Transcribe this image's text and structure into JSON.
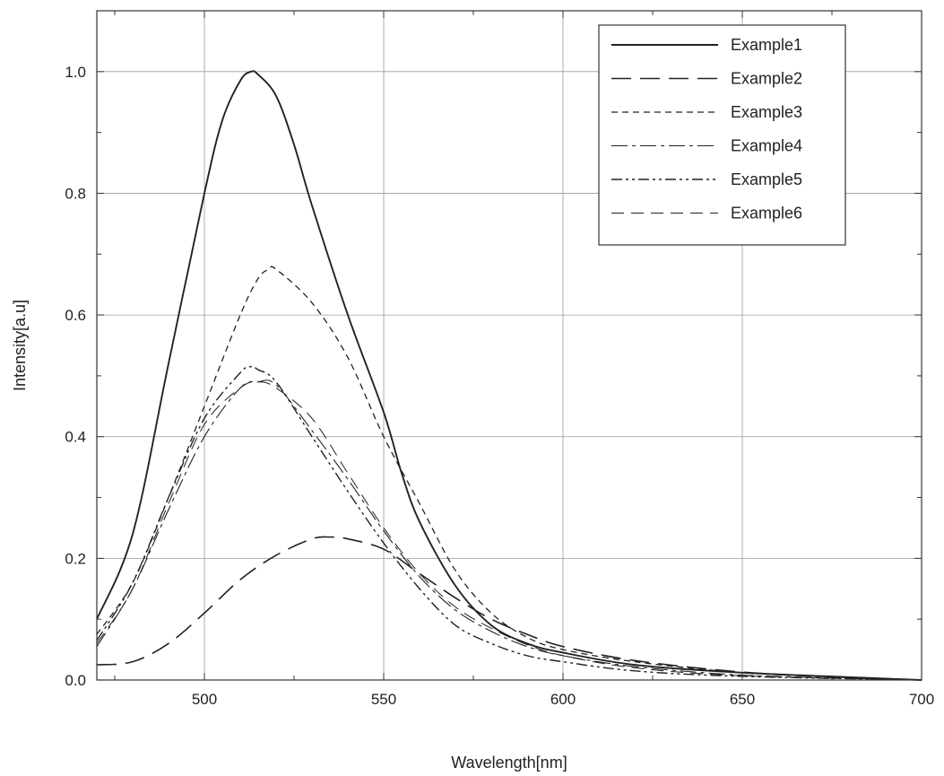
{
  "chart_data": {
    "type": "line",
    "title": "",
    "xlabel": "Wavelength[nm]",
    "ylabel": "Intensity[a.u]",
    "xlim": [
      470,
      700
    ],
    "ylim": [
      0,
      1.1
    ],
    "xticks": [
      500,
      550,
      600,
      650,
      700
    ],
    "yticks": [
      0.0,
      0.2,
      0.4,
      0.6,
      0.8,
      1.0
    ],
    "xtick_labels": [
      "500",
      "550",
      "600",
      "650",
      "700"
    ],
    "ytick_labels": [
      "0.0",
      "0.2",
      "0.4",
      "0.6",
      "0.8",
      "1.0"
    ],
    "grid": true,
    "legend_position": "top-right",
    "line_color": "#222222",
    "series": [
      {
        "name": "Example1",
        "style": "solid",
        "points": [
          [
            470,
            0.1
          ],
          [
            480,
            0.24
          ],
          [
            490,
            0.52
          ],
          [
            500,
            0.8
          ],
          [
            505,
            0.92
          ],
          [
            510,
            0.985
          ],
          [
            513,
            1.0
          ],
          [
            515,
            0.995
          ],
          [
            520,
            0.96
          ],
          [
            525,
            0.88
          ],
          [
            530,
            0.78
          ],
          [
            540,
            0.6
          ],
          [
            550,
            0.44
          ],
          [
            555,
            0.34
          ],
          [
            560,
            0.26
          ],
          [
            570,
            0.155
          ],
          [
            580,
            0.09
          ],
          [
            590,
            0.06
          ],
          [
            600,
            0.045
          ],
          [
            620,
            0.025
          ],
          [
            650,
            0.012
          ],
          [
            700,
            0.0
          ]
        ]
      },
      {
        "name": "Example2",
        "style": "longdash",
        "points": [
          [
            470,
            0.025
          ],
          [
            480,
            0.03
          ],
          [
            490,
            0.06
          ],
          [
            500,
            0.11
          ],
          [
            510,
            0.165
          ],
          [
            520,
            0.205
          ],
          [
            530,
            0.232
          ],
          [
            535,
            0.235
          ],
          [
            540,
            0.232
          ],
          [
            550,
            0.215
          ],
          [
            560,
            0.175
          ],
          [
            570,
            0.135
          ],
          [
            580,
            0.1
          ],
          [
            590,
            0.075
          ],
          [
            600,
            0.055
          ],
          [
            620,
            0.032
          ],
          [
            650,
            0.013
          ],
          [
            680,
            0.004
          ],
          [
            700,
            0.0
          ]
        ]
      },
      {
        "name": "Example3",
        "style": "shortdash",
        "points": [
          [
            470,
            0.075
          ],
          [
            480,
            0.16
          ],
          [
            490,
            0.3
          ],
          [
            500,
            0.45
          ],
          [
            510,
            0.6
          ],
          [
            515,
            0.66
          ],
          [
            518,
            0.675
          ],
          [
            520,
            0.675
          ],
          [
            530,
            0.62
          ],
          [
            540,
            0.53
          ],
          [
            550,
            0.4
          ],
          [
            560,
            0.29
          ],
          [
            570,
            0.18
          ],
          [
            580,
            0.11
          ],
          [
            590,
            0.07
          ],
          [
            600,
            0.05
          ],
          [
            620,
            0.03
          ],
          [
            650,
            0.012
          ],
          [
            680,
            0.004
          ],
          [
            700,
            0.0
          ]
        ]
      },
      {
        "name": "Example4",
        "style": "dashdot",
        "points": [
          [
            470,
            0.055
          ],
          [
            480,
            0.15
          ],
          [
            490,
            0.28
          ],
          [
            500,
            0.4
          ],
          [
            510,
            0.48
          ],
          [
            515,
            0.49
          ],
          [
            520,
            0.485
          ],
          [
            530,
            0.41
          ],
          [
            540,
            0.33
          ],
          [
            550,
            0.245
          ],
          [
            560,
            0.17
          ],
          [
            570,
            0.115
          ],
          [
            580,
            0.08
          ],
          [
            590,
            0.055
          ],
          [
            600,
            0.04
          ],
          [
            620,
            0.022
          ],
          [
            650,
            0.008
          ],
          [
            680,
            0.003
          ],
          [
            700,
            0.0
          ]
        ]
      },
      {
        "name": "Example5",
        "style": "dashdotdot",
        "points": [
          [
            470,
            0.065
          ],
          [
            480,
            0.16
          ],
          [
            490,
            0.3
          ],
          [
            500,
            0.43
          ],
          [
            510,
            0.505
          ],
          [
            513,
            0.515
          ],
          [
            515,
            0.51
          ],
          [
            520,
            0.49
          ],
          [
            530,
            0.4
          ],
          [
            540,
            0.31
          ],
          [
            550,
            0.225
          ],
          [
            560,
            0.15
          ],
          [
            570,
            0.09
          ],
          [
            580,
            0.06
          ],
          [
            590,
            0.04
          ],
          [
            600,
            0.03
          ],
          [
            620,
            0.015
          ],
          [
            650,
            0.006
          ],
          [
            700,
            0.0
          ]
        ]
      },
      {
        "name": "Example6",
        "style": "mediumdash",
        "points": [
          [
            470,
            0.06
          ],
          [
            480,
            0.15
          ],
          [
            490,
            0.29
          ],
          [
            500,
            0.42
          ],
          [
            510,
            0.48
          ],
          [
            515,
            0.49
          ],
          [
            520,
            0.48
          ],
          [
            530,
            0.43
          ],
          [
            540,
            0.34
          ],
          [
            550,
            0.25
          ],
          [
            560,
            0.175
          ],
          [
            570,
            0.12
          ],
          [
            580,
            0.085
          ],
          [
            590,
            0.058
          ],
          [
            600,
            0.04
          ],
          [
            620,
            0.02
          ],
          [
            650,
            0.007
          ],
          [
            700,
            0.0
          ]
        ]
      }
    ]
  }
}
